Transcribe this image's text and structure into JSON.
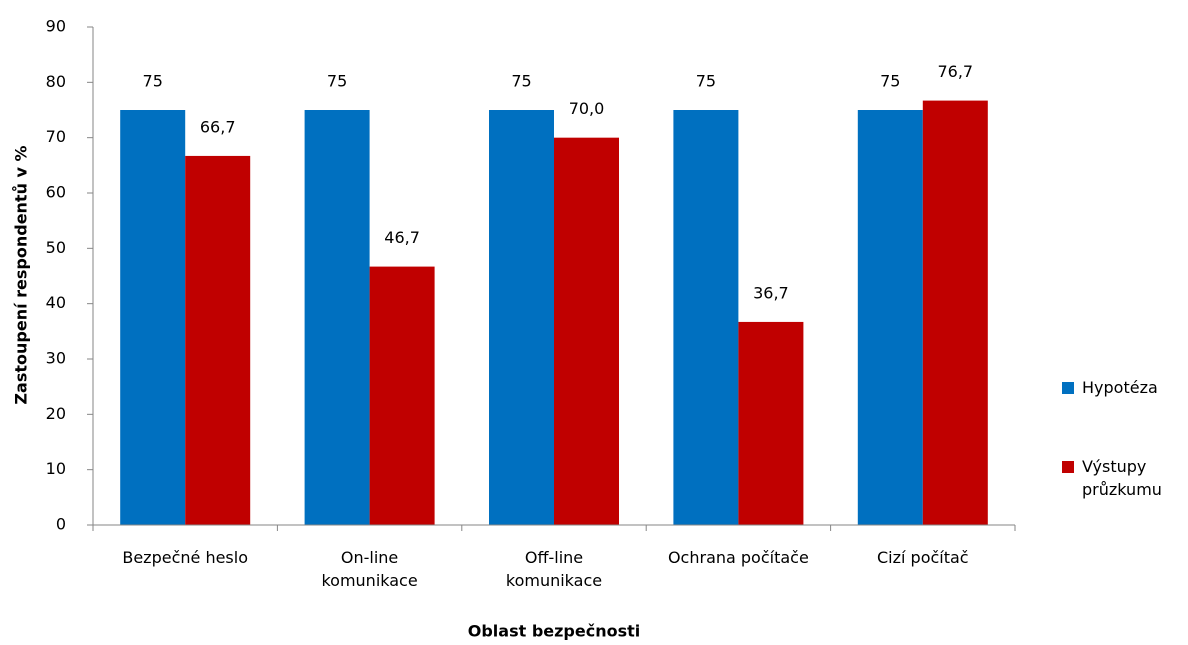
{
  "chart_data": {
    "type": "bar",
    "categories": [
      "Bezpečné heslo",
      "On-line\nkomunikace",
      "Off-line\nkomunikace",
      "Ochrana počítače",
      "Cizí počítač"
    ],
    "series": [
      {
        "name": "Hypotéza",
        "color": "#0070c0",
        "values": [
          75,
          75,
          75,
          75,
          75
        ]
      },
      {
        "name": "Výstupy\nprůzkumu",
        "color": "#c00000",
        "values": [
          66.7,
          46.7,
          70.0,
          36.7,
          76.7
        ],
        "value_labels": [
          "66,7",
          "46,7",
          "70,0",
          "36,7",
          "76,7"
        ]
      }
    ],
    "ylim": [
      0,
      90
    ],
    "yticks": [
      0,
      10,
      20,
      30,
      40,
      50,
      60,
      70,
      80,
      90
    ],
    "xlabel": "Oblast bezpečnosti",
    "ylabel": "Zastoupení respondentů v %",
    "legend": "right",
    "grid": false
  }
}
